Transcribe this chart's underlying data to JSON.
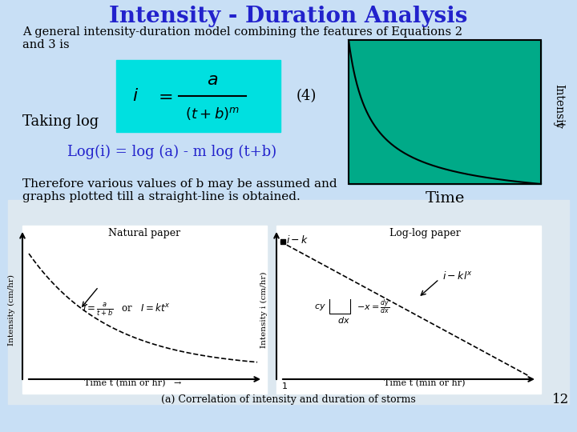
{
  "title": "Intensity - Duration Analysis",
  "title_color": "#2222cc",
  "title_fontsize": 20,
  "bg_color": "#c8dff5",
  "subtitle": "A general intensity-duration model combining the features of Equations 2\nand 3 is",
  "subtitle_fontsize": 10.5,
  "formula_bg": "#00e0e0",
  "eq_label": "(4)",
  "taking_log": "Taking log",
  "log_eq": "Log(i) = log (a) - m log (t+b)",
  "log_eq_color": "#2222cc",
  "therefore_text": "Therefore various values of b may be assumed and\ngraphs plotted till a straight-line is obtained.",
  "time_label": "Time",
  "intensity_label": "Intensit",
  "plot_bg": "#00aa88",
  "page_num": "12",
  "curve_color": "#000000",
  "bottom_bg": "#dde8f0"
}
